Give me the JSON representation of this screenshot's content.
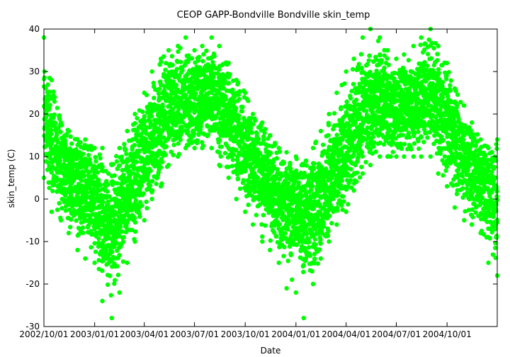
{
  "chart_data": {
    "type": "scatter",
    "title": "CEOP GAPP-Bondville Bondville  skin_temp",
    "xlabel": "Date",
    "ylabel": "skin_temp (C)",
    "ylim": [
      -30,
      40
    ],
    "xlim": [
      "2002-10-01",
      "2004-12-31"
    ],
    "y_ticks": [
      -30,
      -20,
      -10,
      0,
      10,
      20,
      30,
      40
    ],
    "x_ticks": [
      "2002/10/01",
      "2003/01/01",
      "2003/04/01",
      "2003/07/01",
      "2003/10/01",
      "2004/01/01",
      "2004/04/01",
      "2004/07/01",
      "2004/10/01"
    ],
    "grid": false,
    "legend": "none",
    "color": "#00ff00",
    "series": [
      {
        "x": [
          "2002-10-01",
          "2002-10-15",
          "2002-11-01",
          "2002-11-15",
          "2002-12-01",
          "2002-12-15",
          "2003-01-01",
          "2003-01-15",
          "2003-02-01",
          "2003-02-15",
          "2003-03-01",
          "2003-03-15",
          "2003-04-01",
          "2003-04-15",
          "2003-05-01",
          "2003-05-15",
          "2003-06-01",
          "2003-06-15",
          "2003-07-01",
          "2003-07-15",
          "2003-08-01",
          "2003-08-15",
          "2003-09-01",
          "2003-09-15",
          "2003-10-01",
          "2003-10-15",
          "2003-11-01",
          "2003-11-15",
          "2003-12-01",
          "2003-12-15",
          "2004-01-01",
          "2004-01-15",
          "2004-02-01",
          "2004-02-15",
          "2004-03-01",
          "2004-03-15",
          "2004-04-01",
          "2004-04-15",
          "2004-05-01",
          "2004-05-15",
          "2004-06-01",
          "2004-06-15",
          "2004-07-01",
          "2004-07-15",
          "2004-08-01",
          "2004-08-15",
          "2004-09-01",
          "2004-09-15",
          "2004-10-01",
          "2004-10-15",
          "2004-11-01",
          "2004-11-15",
          "2004-12-01",
          "2004-12-15",
          "2004-12-31"
        ],
        "mean": [
          20,
          14,
          8,
          6,
          4,
          2,
          0,
          -5,
          -6,
          -3,
          2,
          5,
          10,
          14,
          18,
          22,
          22,
          23,
          24,
          23,
          25,
          22,
          20,
          16,
          12,
          9,
          6,
          3,
          -1,
          -2,
          -2,
          -4,
          -3,
          0,
          4,
          8,
          12,
          16,
          20,
          22,
          24,
          22,
          21,
          22,
          22,
          24,
          26,
          22,
          18,
          14,
          10,
          7,
          4,
          2,
          0
        ],
        "spread": [
          12,
          12,
          11,
          11,
          11,
          11,
          12,
          13,
          14,
          13,
          12,
          12,
          13,
          13,
          13,
          12,
          11,
          11,
          10,
          10,
          10,
          11,
          12,
          12,
          12,
          11,
          11,
          11,
          11,
          11,
          12,
          13,
          14,
          13,
          12,
          12,
          13,
          13,
          13,
          12,
          11,
          11,
          10,
          10,
          10,
          11,
          12,
          12,
          12,
          11,
          11,
          11,
          11,
          11,
          12
        ],
        "min": [
          5,
          -3,
          -5,
          -8,
          -12,
          -14,
          -15,
          -24,
          -28,
          -22,
          -15,
          -10,
          -5,
          0,
          3,
          8,
          10,
          12,
          12,
          12,
          12,
          8,
          5,
          0,
          -3,
          -6,
          -10,
          -12,
          -15,
          -21,
          -22,
          -28,
          -20,
          -14,
          -10,
          -6,
          -3,
          2,
          6,
          8,
          10,
          10,
          10,
          10,
          10,
          10,
          10,
          6,
          3,
          -2,
          -5,
          -6,
          -8,
          -15,
          -18
        ],
        "max": [
          38,
          28,
          18,
          16,
          14,
          14,
          12,
          12,
          8,
          12,
          16,
          20,
          25,
          30,
          33,
          35,
          36,
          38,
          35,
          36,
          38,
          36,
          32,
          28,
          25,
          20,
          18,
          15,
          12,
          11,
          10,
          8,
          12,
          16,
          20,
          25,
          30,
          33,
          38,
          40,
          38,
          35,
          33,
          34,
          36,
          38,
          40,
          36,
          32,
          26,
          22,
          18,
          14,
          12,
          14
        ]
      }
    ]
  }
}
